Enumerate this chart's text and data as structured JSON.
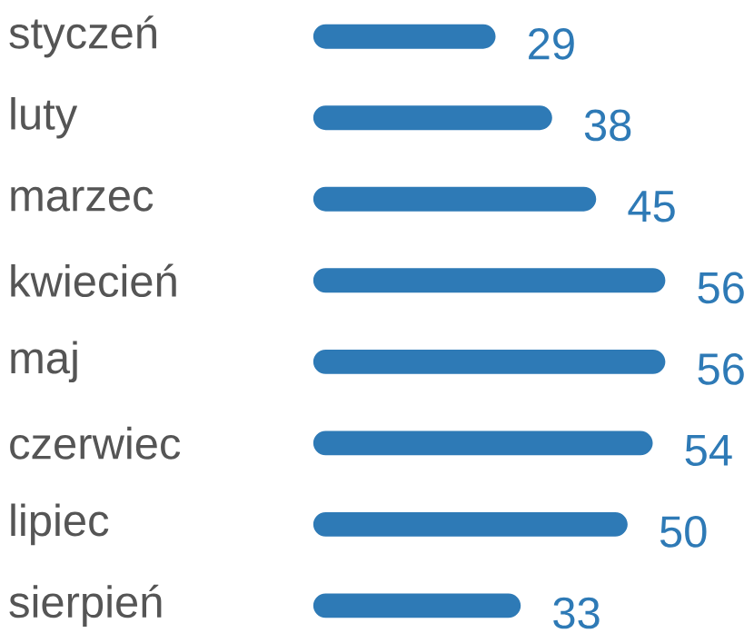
{
  "chart_data": {
    "type": "bar",
    "orientation": "horizontal",
    "categories": [
      "styczeń",
      "luty",
      "marzec",
      "kwiecień",
      "maj",
      "czerwiec",
      "lipiec",
      "sierpień"
    ],
    "values": [
      29,
      38,
      45,
      56,
      56,
      54,
      50,
      33
    ],
    "color": "#2e7ab6",
    "data_labels": true
  }
}
